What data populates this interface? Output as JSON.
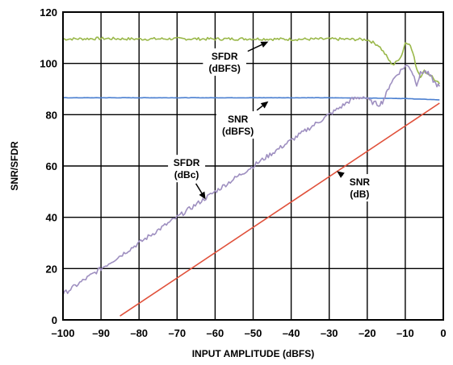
{
  "chart_data": {
    "type": "line",
    "xlabel": "INPUT AMPLITUDE (dBFS)",
    "ylabel": "SNR/SFDR",
    "xlim": [
      -100,
      0
    ],
    "ylim": [
      0,
      120
    ],
    "xticks": [
      -100,
      -90,
      -80,
      -70,
      -60,
      -50,
      -40,
      -30,
      -20,
      -10,
      0
    ],
    "xtick_labels": [
      "–100",
      "–90",
      "–80",
      "–70",
      "–60",
      "–50",
      "–40",
      "–30",
      "–20",
      "–10",
      "0"
    ],
    "yticks": [
      0,
      20,
      40,
      60,
      80,
      100,
      120
    ],
    "ytick_labels": [
      "0",
      "20",
      "40",
      "60",
      "80",
      "100",
      "120"
    ],
    "grid": true,
    "series": [
      {
        "name": "SFDR (dBFS)",
        "color": "#9ab84a",
        "x": [
          -100,
          -90,
          -80,
          -70,
          -60,
          -50,
          -40,
          -30,
          -20,
          -17,
          -15,
          -14,
          -13,
          -11,
          -10,
          -9,
          -8,
          -7,
          -6,
          -5,
          -4,
          -3,
          -2,
          -1
        ],
        "y": [
          109.5,
          109.7,
          109.5,
          109.6,
          109.5,
          109.6,
          109.4,
          109.5,
          109.3,
          107,
          103,
          100.5,
          99.5,
          103,
          108,
          108,
          104,
          98,
          95,
          97,
          96,
          95,
          93,
          92
        ]
      },
      {
        "name": "SNR (dBFS)",
        "color": "#4a7fd0",
        "x": [
          -100,
          -90,
          -80,
          -70,
          -60,
          -50,
          -40,
          -30,
          -20,
          -10,
          -5,
          -1
        ],
        "y": [
          86.6,
          86.6,
          86.6,
          86.6,
          86.6,
          86.6,
          86.6,
          86.6,
          86.5,
          86.3,
          86.0,
          85.8
        ]
      },
      {
        "name": "SFDR (dBc)",
        "color": "#9e8fc0",
        "x": [
          -100,
          -90,
          -80,
          -70,
          -60,
          -50,
          -40,
          -30,
          -24,
          -21,
          -19,
          -17,
          -16,
          -15,
          -14,
          -12,
          -10,
          -9,
          -8,
          -7,
          -6,
          -5,
          -4,
          -3,
          -2,
          -1
        ],
        "y": [
          10,
          20,
          30,
          40,
          50,
          60,
          70,
          80,
          86,
          87,
          85,
          84,
          85,
          88,
          92,
          96,
          99,
          99,
          96,
          92,
          96,
          97,
          96,
          94,
          92,
          91
        ]
      },
      {
        "name": "SNR (dB)",
        "color": "#e0503a",
        "x": [
          -85,
          -1
        ],
        "y": [
          1.5,
          84.5
        ]
      }
    ],
    "annotations": [
      {
        "lines": [
          "SFDR",
          "(dBFS)"
        ],
        "x": -57.5,
        "y": 100.5,
        "arrow_to": [
          -46,
          108.5
        ]
      },
      {
        "lines": [
          "SNR",
          "(dBFS)"
        ],
        "x": -54,
        "y": 76,
        "arrow_to": [
          -46,
          85.2
        ]
      },
      {
        "lines": [
          "SFDR",
          "(dBc)"
        ],
        "x": -67.5,
        "y": 59,
        "arrow_to": [
          -62.5,
          47
        ]
      },
      {
        "lines": [
          "SNR",
          "(dB)"
        ],
        "x": -22,
        "y": 51.5,
        "arrow_to": [
          -28,
          58
        ]
      }
    ]
  }
}
